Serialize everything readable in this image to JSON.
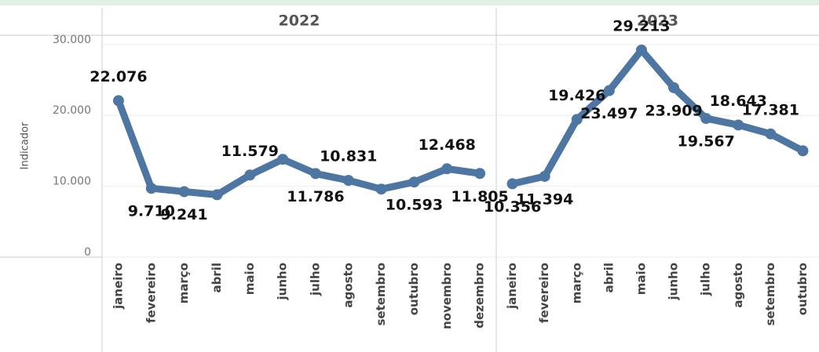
{
  "chart_data": [
    {
      "type": "line",
      "title": "2022",
      "y_label": "Indicador",
      "color": "#4e76a3",
      "grid": true,
      "categories": [
        "janeiro",
        "fevereiro",
        "março",
        "abril",
        "maio",
        "junho",
        "julho",
        "agosto",
        "setembro",
        "outubro",
        "novembro",
        "dezembro"
      ],
      "values": [
        22076,
        9710,
        9241,
        8800,
        11579,
        13800,
        11786,
        10831,
        9600,
        10593,
        12468,
        11805
      ],
      "value_labels": [
        "22.076",
        "9.710",
        "9.241",
        null,
        "11.579",
        null,
        "11.786",
        "10.831",
        null,
        "10.593",
        "12.468",
        "11.805"
      ],
      "ylim": [
        0,
        31300
      ],
      "yticks": [
        0,
        {
          "value": 10000,
          "label": "10.000"
        },
        {
          "value": 20000,
          "label": "20.000"
        },
        {
          "value": 30000,
          "label": "30.000"
        }
      ]
    },
    {
      "type": "line",
      "title": "2023",
      "color": "#4e76a3",
      "grid": true,
      "categories": [
        "janeiro",
        "fevereiro",
        "março",
        "abril",
        "maio",
        "junho",
        "julho",
        "agosto",
        "setembro",
        "outubro"
      ],
      "values": [
        10356,
        11394,
        19426,
        23497,
        29213,
        23909,
        19567,
        18643,
        17381,
        15000
      ],
      "value_labels": [
        "10.356",
        "11.394",
        "19.426",
        "23.497",
        "29.213",
        "23.909",
        "19.567",
        "18.643",
        "17.381",
        null
      ],
      "ylim": [
        0,
        31300
      ]
    }
  ]
}
